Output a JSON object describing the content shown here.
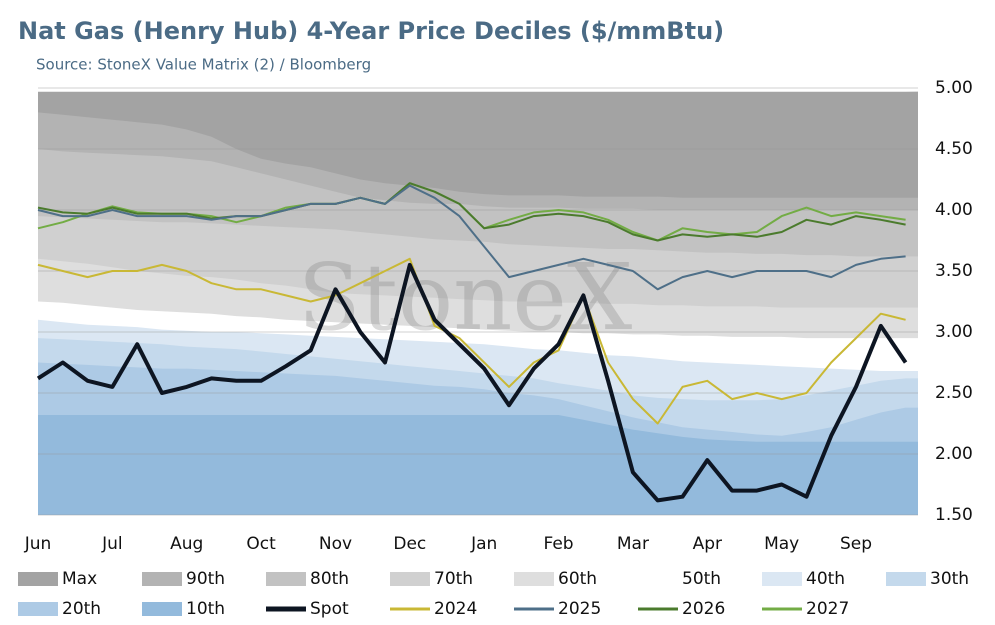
{
  "chart_data": {
    "type": "line",
    "title": "Nat Gas (Henry Hub) 4-Year Price Deciles ($/mmBtu)",
    "subtitle": "Source: StoneX Value Matrix (2) / Bloomberg",
    "watermark": "StoneX",
    "categories": [
      "Jun",
      null,
      null,
      "Jul",
      null,
      null,
      "Aug",
      null,
      null,
      "Oct",
      null,
      null,
      "Nov",
      null,
      null,
      "Dec",
      null,
      null,
      "Jan",
      null,
      null,
      "Feb",
      null,
      null,
      "Mar",
      null,
      null,
      "Apr",
      null,
      null,
      "May",
      null,
      null,
      "Sep",
      null,
      null
    ],
    "ylim": [
      1.5,
      5.0
    ],
    "yticks": [
      {
        "value": 1.5,
        "label": "1.50"
      },
      {
        "value": 2,
        "label": "2.00"
      },
      {
        "value": 2.5,
        "label": "2.50"
      },
      {
        "value": 3,
        "label": "3.00"
      },
      {
        "value": 3.5,
        "label": "3.50"
      },
      {
        "value": 4,
        "label": "4.00"
      },
      {
        "value": 4.5,
        "label": "4.50"
      },
      {
        "value": 5,
        "label": "5.00"
      }
    ],
    "grid": true,
    "legend": "bottom",
    "series": [
      {
        "name": "Max",
        "type": "area",
        "color": "#a3a3a3",
        "values": [
          4.97,
          4.97,
          4.97,
          4.97,
          4.97,
          4.97,
          4.97,
          4.97,
          4.97,
          4.97,
          4.97,
          4.97,
          4.97,
          4.97,
          4.97,
          4.97,
          4.97,
          4.97,
          4.97,
          4.97,
          4.97,
          4.97,
          4.97,
          4.97,
          4.97,
          4.97,
          4.97,
          4.97,
          4.97,
          4.97,
          4.97,
          4.97,
          4.97,
          4.97,
          4.97,
          4.97
        ]
      },
      {
        "name": "90th",
        "type": "area",
        "color": "#b3b3b3",
        "values": [
          4.8,
          4.78,
          4.76,
          4.74,
          4.72,
          4.7,
          4.66,
          4.6,
          4.5,
          4.42,
          4.38,
          4.35,
          4.3,
          4.25,
          4.22,
          4.2,
          4.18,
          4.15,
          4.13,
          4.12,
          4.12,
          4.12,
          4.11,
          4.11,
          4.11,
          4.11,
          4.1,
          4.1,
          4.1,
          4.1,
          4.1,
          4.1,
          4.1,
          4.1,
          4.1,
          4.1
        ]
      },
      {
        "name": "80th",
        "type": "area",
        "color": "#c2c2c2",
        "values": [
          4.5,
          4.48,
          4.47,
          4.46,
          4.45,
          4.44,
          4.42,
          4.4,
          4.35,
          4.3,
          4.25,
          4.2,
          4.15,
          4.1,
          4.08,
          4.06,
          4.05,
          4.05,
          4.03,
          4.02,
          4.02,
          4.02,
          4.01,
          4.01,
          4.01,
          4.0,
          4.0,
          4.0,
          4.0,
          4.0,
          4.0,
          4.0,
          4.0,
          4.0,
          4.0,
          4.0
        ]
      },
      {
        "name": "70th",
        "type": "area",
        "color": "#d0d0d0",
        "values": [
          3.95,
          3.94,
          3.93,
          3.92,
          3.91,
          3.9,
          3.9,
          3.89,
          3.88,
          3.87,
          3.86,
          3.85,
          3.84,
          3.82,
          3.8,
          3.78,
          3.76,
          3.75,
          3.74,
          3.72,
          3.71,
          3.7,
          3.69,
          3.68,
          3.68,
          3.67,
          3.66,
          3.65,
          3.65,
          3.64,
          3.64,
          3.63,
          3.63,
          3.62,
          3.62,
          3.62
        ]
      },
      {
        "name": "60th",
        "type": "area",
        "color": "#dedede",
        "values": [
          3.6,
          3.58,
          3.56,
          3.53,
          3.5,
          3.48,
          3.46,
          3.45,
          3.43,
          3.4,
          3.38,
          3.35,
          3.32,
          3.31,
          3.3,
          3.29,
          3.28,
          3.27,
          3.26,
          3.25,
          3.25,
          3.24,
          3.24,
          3.23,
          3.23,
          3.22,
          3.22,
          3.21,
          3.21,
          3.21,
          3.2,
          3.2,
          3.2,
          3.2,
          3.2,
          3.2
        ]
      },
      {
        "name": "50th",
        "type": "area",
        "color": "#ffffff",
        "values": [
          3.25,
          3.24,
          3.22,
          3.2,
          3.18,
          3.17,
          3.16,
          3.15,
          3.13,
          3.12,
          3.1,
          3.09,
          3.08,
          3.07,
          3.06,
          3.05,
          3.04,
          3.03,
          3.02,
          3.01,
          3.0,
          3.0,
          2.99,
          2.99,
          2.98,
          2.98,
          2.97,
          2.97,
          2.96,
          2.96,
          2.96,
          2.95,
          2.95,
          2.95,
          2.95,
          2.95
        ]
      },
      {
        "name": "40th",
        "type": "area",
        "color": "#dbe7f3",
        "values": [
          3.1,
          3.08,
          3.06,
          3.05,
          3.04,
          3.02,
          3.01,
          3.0,
          3.0,
          2.99,
          2.98,
          2.97,
          2.96,
          2.95,
          2.94,
          2.93,
          2.92,
          2.91,
          2.9,
          2.88,
          2.86,
          2.85,
          2.83,
          2.81,
          2.8,
          2.78,
          2.76,
          2.75,
          2.74,
          2.73,
          2.72,
          2.71,
          2.7,
          2.69,
          2.68,
          2.68
        ]
      },
      {
        "name": "30th",
        "type": "area",
        "color": "#c4d9ec",
        "values": [
          2.95,
          2.94,
          2.93,
          2.92,
          2.91,
          2.9,
          2.88,
          2.87,
          2.86,
          2.84,
          2.82,
          2.8,
          2.78,
          2.76,
          2.74,
          2.72,
          2.7,
          2.68,
          2.66,
          2.64,
          2.62,
          2.58,
          2.55,
          2.52,
          2.48,
          2.46,
          2.45,
          2.44,
          2.44,
          2.44,
          2.45,
          2.48,
          2.52,
          2.56,
          2.6,
          2.62
        ]
      },
      {
        "name": "20th",
        "type": "area",
        "color": "#adcae5",
        "values": [
          2.75,
          2.74,
          2.73,
          2.72,
          2.71,
          2.7,
          2.7,
          2.69,
          2.68,
          2.67,
          2.66,
          2.65,
          2.64,
          2.62,
          2.6,
          2.58,
          2.56,
          2.55,
          2.53,
          2.5,
          2.48,
          2.45,
          2.4,
          2.35,
          2.3,
          2.26,
          2.22,
          2.2,
          2.18,
          2.16,
          2.15,
          2.18,
          2.22,
          2.28,
          2.34,
          2.38
        ]
      },
      {
        "name": "10th",
        "type": "area",
        "color": "#93badc",
        "values": [
          2.32,
          2.32,
          2.32,
          2.32,
          2.32,
          2.32,
          2.32,
          2.32,
          2.32,
          2.32,
          2.32,
          2.32,
          2.32,
          2.32,
          2.32,
          2.32,
          2.32,
          2.32,
          2.32,
          2.32,
          2.32,
          2.32,
          2.28,
          2.24,
          2.2,
          2.17,
          2.14,
          2.12,
          2.11,
          2.1,
          2.1,
          2.1,
          2.1,
          2.1,
          2.1,
          2.1
        ]
      },
      {
        "name": "Spot",
        "type": "line",
        "color": "#0d1522",
        "width": 4,
        "values": [
          2.62,
          2.75,
          2.6,
          2.55,
          2.9,
          2.5,
          2.55,
          2.62,
          2.6,
          2.6,
          2.72,
          2.85,
          3.35,
          3.0,
          2.75,
          3.55,
          3.1,
          2.9,
          2.7,
          2.4,
          2.7,
          2.9,
          3.3,
          2.6,
          1.85,
          1.62,
          1.65,
          1.95,
          1.7,
          1.7,
          1.75,
          1.65,
          2.15,
          2.55,
          3.05,
          2.75
        ]
      },
      {
        "name": "2024",
        "type": "line",
        "color": "#c9b835",
        "width": 2,
        "values": [
          3.55,
          3.5,
          3.45,
          3.5,
          3.5,
          3.55,
          3.5,
          3.4,
          3.35,
          3.35,
          3.3,
          3.25,
          3.3,
          3.4,
          3.5,
          3.6,
          3.05,
          2.95,
          2.75,
          2.55,
          2.75,
          2.85,
          3.3,
          2.75,
          2.45,
          2.25,
          2.55,
          2.6,
          2.45,
          2.5,
          2.45,
          2.5,
          2.75,
          2.95,
          3.15,
          3.1
        ]
      },
      {
        "name": "2025",
        "type": "line",
        "color": "#4e6f88",
        "width": 2,
        "values": [
          4.0,
          3.95,
          3.95,
          4.0,
          3.95,
          3.95,
          3.95,
          3.92,
          3.95,
          3.95,
          4.0,
          4.05,
          4.05,
          4.1,
          4.05,
          4.2,
          4.1,
          3.95,
          3.7,
          3.45,
          3.5,
          3.55,
          3.6,
          3.55,
          3.5,
          3.35,
          3.45,
          3.5,
          3.45,
          3.5,
          3.5,
          3.5,
          3.45,
          3.55,
          3.6,
          3.62
        ]
      },
      {
        "name": "2026",
        "type": "line",
        "color": "#4b7b2d",
        "width": 2,
        "values": [
          4.02,
          3.98,
          3.97,
          4.02,
          3.97,
          3.97,
          3.97,
          3.93,
          3.95,
          3.95,
          4.0,
          4.05,
          4.05,
          4.1,
          4.05,
          4.22,
          4.15,
          4.05,
          3.85,
          3.88,
          3.95,
          3.97,
          3.95,
          3.9,
          3.8,
          3.75,
          3.8,
          3.78,
          3.8,
          3.78,
          3.82,
          3.92,
          3.88,
          3.95,
          3.92,
          3.88
        ]
      },
      {
        "name": "2027",
        "type": "line",
        "color": "#73ac45",
        "width": 2,
        "values": [
          3.85,
          3.9,
          3.97,
          4.03,
          3.98,
          3.97,
          3.97,
          3.95,
          3.9,
          3.95,
          4.02,
          4.05,
          4.05,
          4.1,
          4.05,
          4.22,
          4.15,
          4.05,
          3.85,
          3.92,
          3.98,
          4.0,
          3.98,
          3.92,
          3.82,
          3.75,
          3.85,
          3.82,
          3.8,
          3.82,
          3.95,
          4.02,
          3.95,
          3.98,
          3.95,
          3.92
        ]
      }
    ]
  }
}
